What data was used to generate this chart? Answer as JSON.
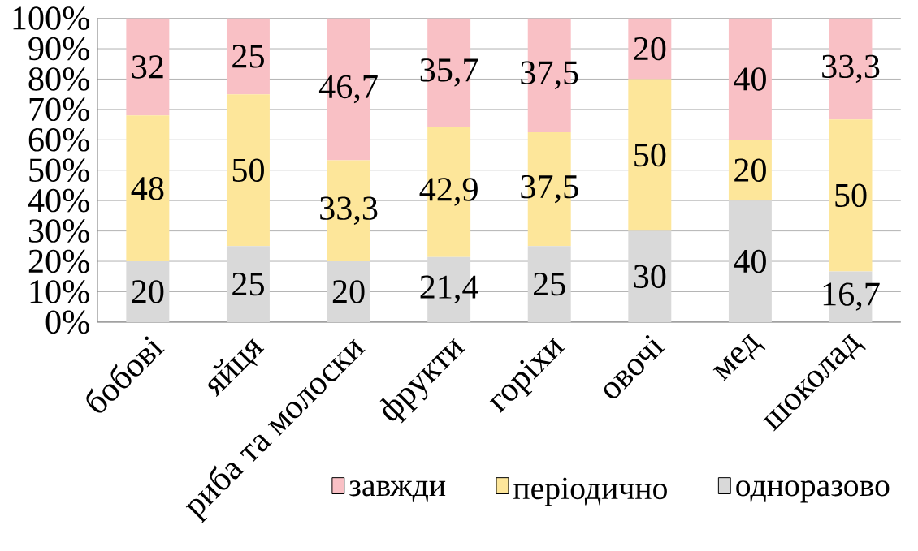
{
  "chart_data": {
    "type": "bar",
    "stacked": true,
    "categories": [
      "бобові",
      "яйця",
      "риба та молоски",
      "фрукти",
      "горіхи",
      "овочі",
      "мед",
      "шоколад"
    ],
    "series": [
      {
        "name": "одноразово",
        "color": "#d9d9d9",
        "values": [
          20,
          25,
          20,
          21.4,
          25,
          30,
          40,
          16.7
        ],
        "value_labels": [
          "20",
          "25",
          "20",
          "21,4",
          "25",
          "30",
          "40",
          "16,7"
        ]
      },
      {
        "name": "періодично",
        "color": "#fde69a",
        "values": [
          48,
          50,
          33.3,
          42.9,
          37.5,
          50,
          20,
          50
        ],
        "value_labels": [
          "48",
          "50",
          "33,3",
          "42,9",
          "37,5",
          "50",
          "20",
          "50"
        ]
      },
      {
        "name": "завжди",
        "color": "#f9c0c5",
        "values": [
          32,
          25,
          46.7,
          35.7,
          37.5,
          20,
          40,
          33.3
        ],
        "value_labels": [
          "32",
          "25",
          "46,7",
          "35,7",
          "37,5",
          "20",
          "40",
          "33,3"
        ]
      }
    ],
    "ylim": [
      0,
      100
    ],
    "yticks": [
      {
        "value": 0,
        "label": "0%"
      },
      {
        "value": 10,
        "label": "10%"
      },
      {
        "value": 20,
        "label": "20%"
      },
      {
        "value": 30,
        "label": "30%"
      },
      {
        "value": 40,
        "label": "40%"
      },
      {
        "value": 50,
        "label": "50%"
      },
      {
        "value": 60,
        "label": "60%"
      },
      {
        "value": 70,
        "label": "70%"
      },
      {
        "value": 80,
        "label": "80%"
      },
      {
        "value": 90,
        "label": "90%"
      },
      {
        "value": 100,
        "label": "100%"
      }
    ],
    "grid": "y",
    "legend": "bottom"
  }
}
